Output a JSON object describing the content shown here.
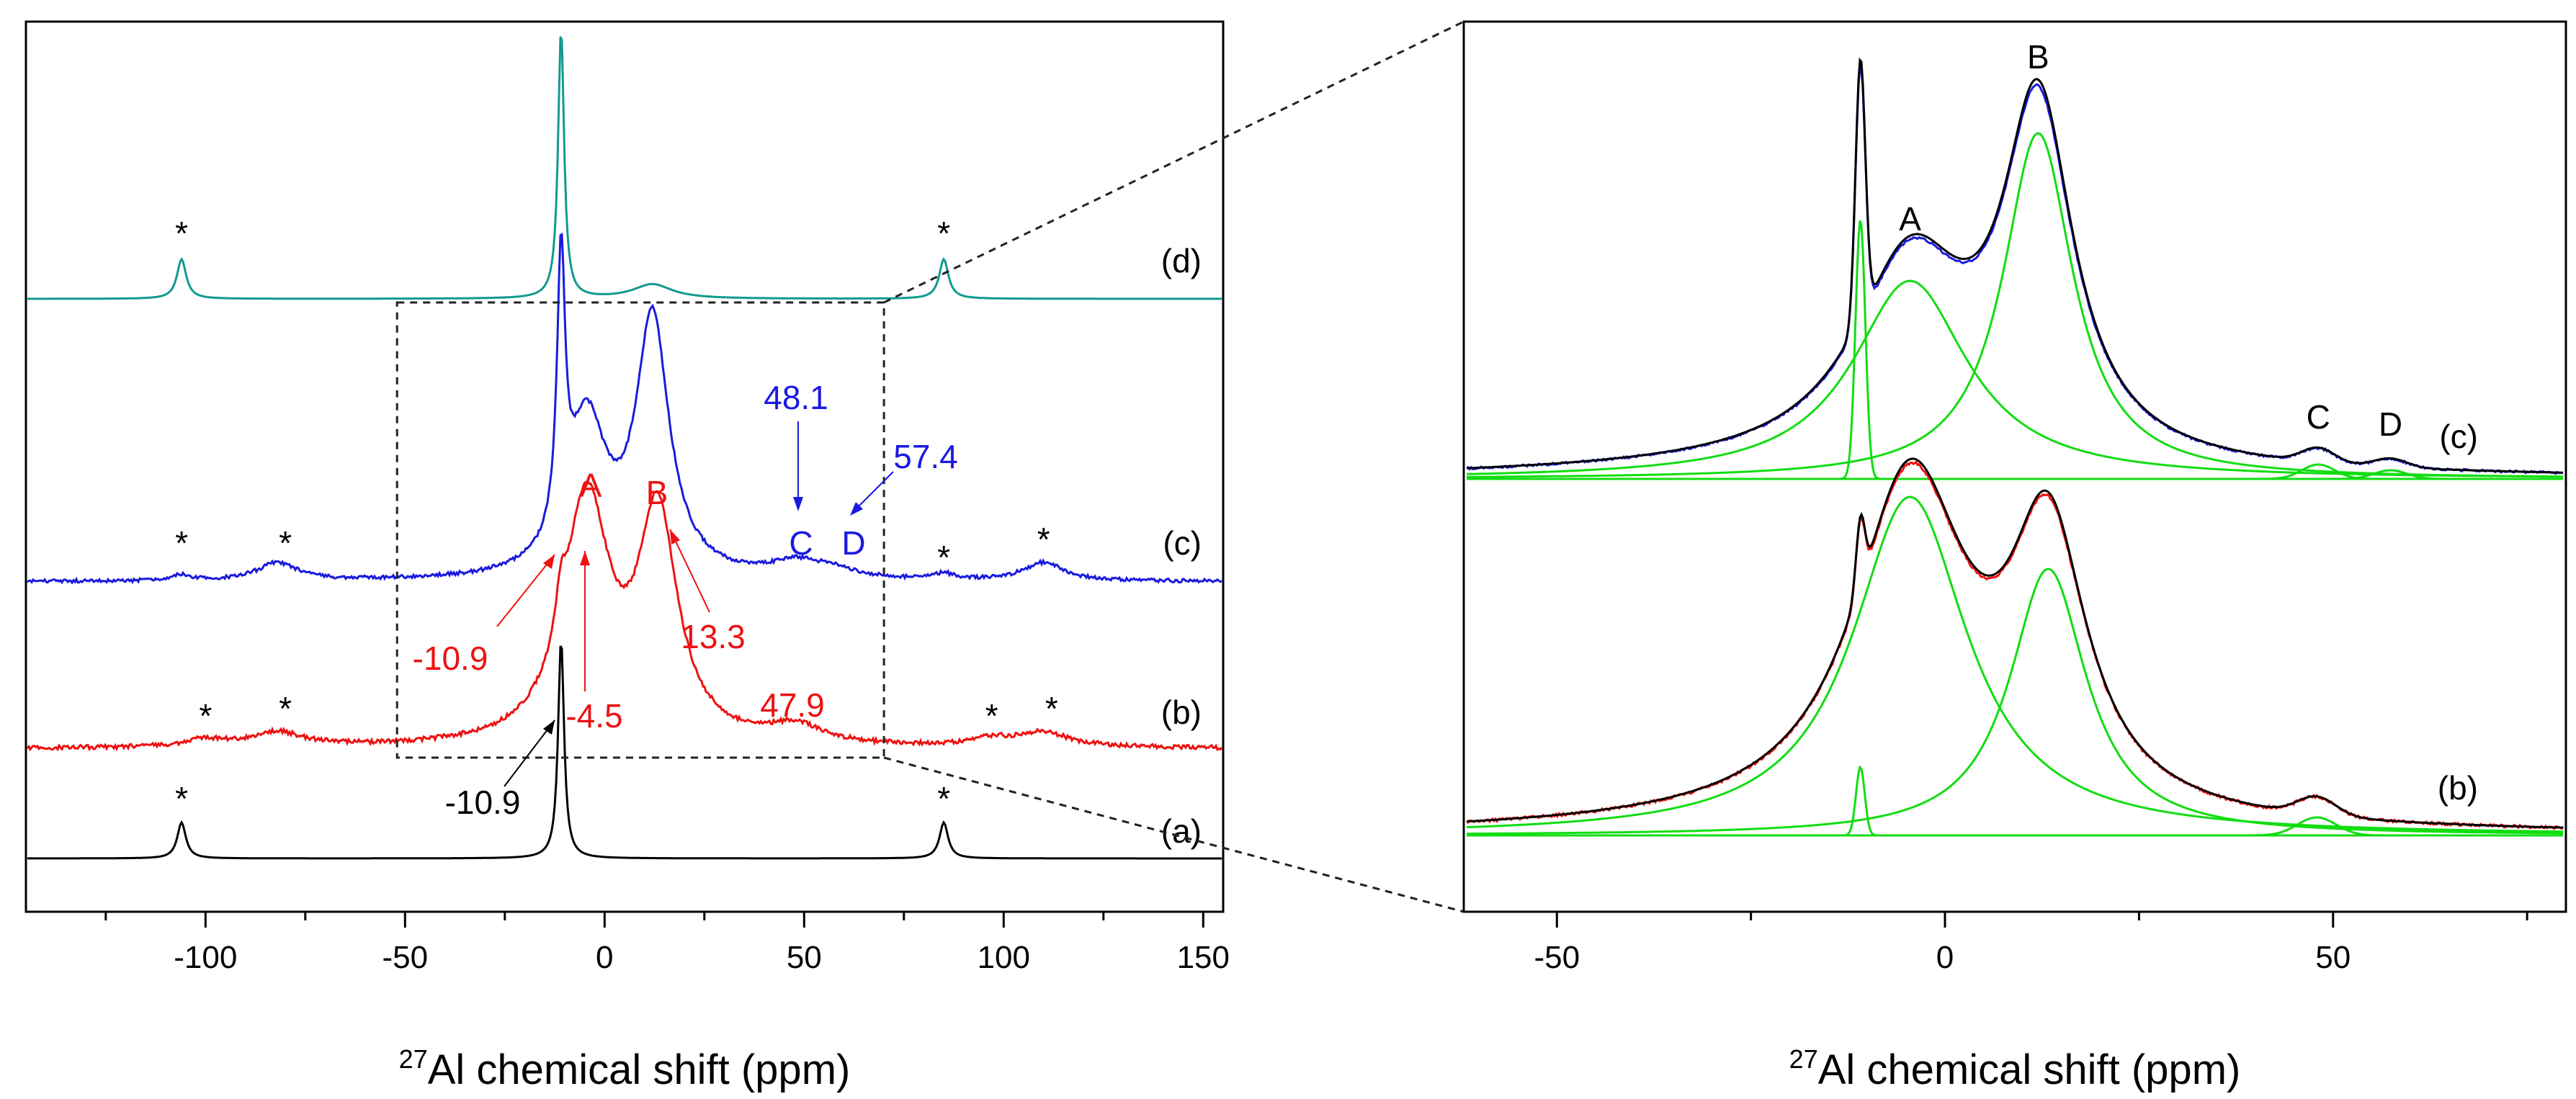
{
  "colors": {
    "a": "#000000",
    "b": "#ee1111",
    "c": "#1a1ae0",
    "d": "#119a8e",
    "fit": "#11dd11"
  },
  "chart_data": [
    {
      "type": "line",
      "title": "",
      "xlabel_sup": "27",
      "xlabel_main": "Al chemical shift (ppm)",
      "xlim": [
        -145,
        155
      ],
      "xticks": [
        -100,
        -50,
        0,
        50,
        100,
        150
      ],
      "xtick_labels": [
        "-100",
        "-50",
        "0",
        "50",
        "100",
        "150"
      ],
      "grid": false,
      "series": [
        {
          "id": "a",
          "name": "(a)",
          "peaks_ppm": [
            -10.9
          ],
          "spinning_sidebands": [
            -106,
            85
          ]
        },
        {
          "id": "b",
          "name": "(b)",
          "peaks_ppm": [
            -10.9,
            -4.5,
            13.3,
            47.9
          ]
        },
        {
          "id": "c",
          "name": "(c)",
          "peaks_ppm": [
            -10.9,
            -4.5,
            12,
            48.1,
            57.4
          ]
        },
        {
          "id": "d",
          "name": "(d)",
          "peaks_ppm": [
            -10.9,
            12
          ],
          "spinning_sidebands": [
            -106,
            85
          ]
        }
      ],
      "star_marker": "*",
      "annotations": [
        {
          "text": "-10.9",
          "series": "a"
        },
        {
          "text": "-10.9",
          "series": "b"
        },
        {
          "text": "-4.5",
          "series": "b"
        },
        {
          "text": "13.3",
          "series": "b"
        },
        {
          "text": "47.9",
          "series": "b"
        },
        {
          "text": "A",
          "series": "b"
        },
        {
          "text": "B",
          "series": "b"
        },
        {
          "text": "48.1",
          "series": "c"
        },
        {
          "text": "57.4",
          "series": "c"
        },
        {
          "text": "C",
          "series": "c"
        },
        {
          "text": "D",
          "series": "c"
        }
      ],
      "zoom_box_ppm": [
        -52,
        70
      ]
    },
    {
      "type": "line",
      "title": "",
      "xlabel_sup": "27",
      "xlabel_main": "Al chemical shift (ppm)",
      "xlim": [
        -62,
        80
      ],
      "xticks": [
        -50,
        0,
        50
      ],
      "xtick_labels": [
        "-50",
        "0",
        "50"
      ],
      "grid": false,
      "series": [
        {
          "id": "c",
          "name": "(c)",
          "components_ppm": [
            -10.9,
            -4.5,
            12,
            48.1,
            57.4
          ]
        },
        {
          "id": "b",
          "name": "(b)",
          "components_ppm": [
            -10.9,
            -4.5,
            13.3,
            47.9
          ]
        }
      ],
      "peak_letters": [
        "A",
        "B",
        "C",
        "D"
      ]
    }
  ]
}
